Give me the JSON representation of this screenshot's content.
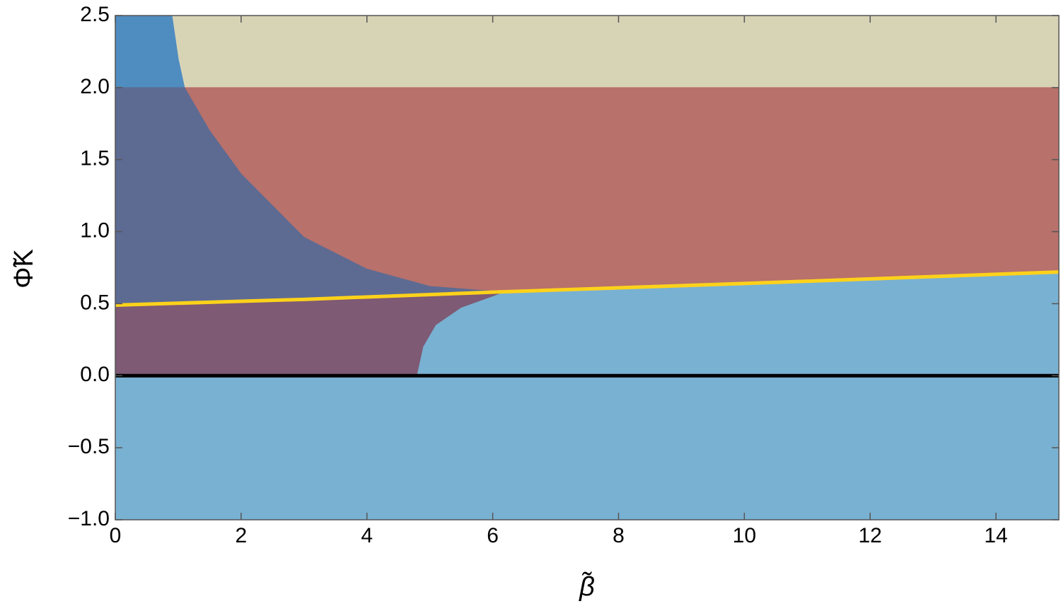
{
  "chart_data": {
    "type": "region",
    "x_label": "β̃",
    "y_label": "Φ̃K",
    "xlim": [
      0,
      15
    ],
    "ylim": [
      -1,
      2.5
    ],
    "xticks": [
      0,
      2,
      4,
      6,
      8,
      10,
      12,
      14
    ],
    "yticks": [
      2.5,
      {
        "value": 2,
        "label": "2.0"
      },
      1.5,
      {
        "value": 1,
        "label": "1.0"
      },
      0.5,
      {
        "value": 0,
        "label": "0.0"
      },
      {
        "value": -0.5,
        "label": "−0.5"
      },
      {
        "value": -1,
        "label": "−1.0"
      }
    ],
    "regions": [
      {
        "color": "#d7d4b6",
        "x": [
          0,
          15,
          15,
          0
        ],
        "y": [
          2,
          2,
          2.5,
          2.5
        ]
      },
      {
        "color": "#4f8cc0",
        "x": [
          0,
          0.9,
          0.95,
          1.0,
          1.1,
          0
        ],
        "y": [
          2.5,
          2.5,
          2.35,
          2.2,
          2.0,
          2.0
        ]
      },
      {
        "color": "#b8716b",
        "x": [
          1.1,
          15,
          15,
          12,
          10,
          8,
          7,
          6.2,
          5,
          4,
          3,
          2,
          1.5
        ],
        "y": [
          2,
          2,
          0.71,
          0.68,
          0.65,
          0.62,
          0.6,
          0.58,
          0.62,
          0.74,
          0.96,
          1.4,
          1.7
        ]
      },
      {
        "color": "#5d6b93",
        "x": [
          0,
          1.1,
          1.5,
          2,
          3,
          4,
          5,
          6.2,
          5,
          3,
          0
        ],
        "y": [
          2,
          2,
          1.7,
          1.4,
          0.96,
          0.74,
          0.62,
          0.58,
          0.56,
          0.53,
          0.49
        ]
      },
      {
        "color": "#7e5a74",
        "x": [
          0,
          3,
          5,
          6.2,
          5.5,
          5.1,
          4.9,
          4.8,
          0
        ],
        "y": [
          0.49,
          0.53,
          0.56,
          0.58,
          0.47,
          0.35,
          0.2,
          0,
          0
        ]
      },
      {
        "color": "#79b1d2",
        "x": [
          0,
          15,
          15,
          12,
          10,
          8,
          7,
          6.2,
          5.5,
          5.1,
          4.9,
          4.8,
          0
        ],
        "y": [
          -1,
          -1,
          0.71,
          0.68,
          0.65,
          0.62,
          0.6,
          0.58,
          0.47,
          0.35,
          0.2,
          0,
          0
        ]
      }
    ],
    "lines": [
      {
        "color": "#ffd21a",
        "x": [
          0,
          3,
          6,
          10,
          15
        ],
        "y": [
          0.49,
          0.53,
          0.58,
          0.64,
          0.72
        ]
      },
      {
        "color": "#000000",
        "x": [
          0,
          15
        ],
        "y": [
          0,
          0
        ]
      }
    ]
  }
}
